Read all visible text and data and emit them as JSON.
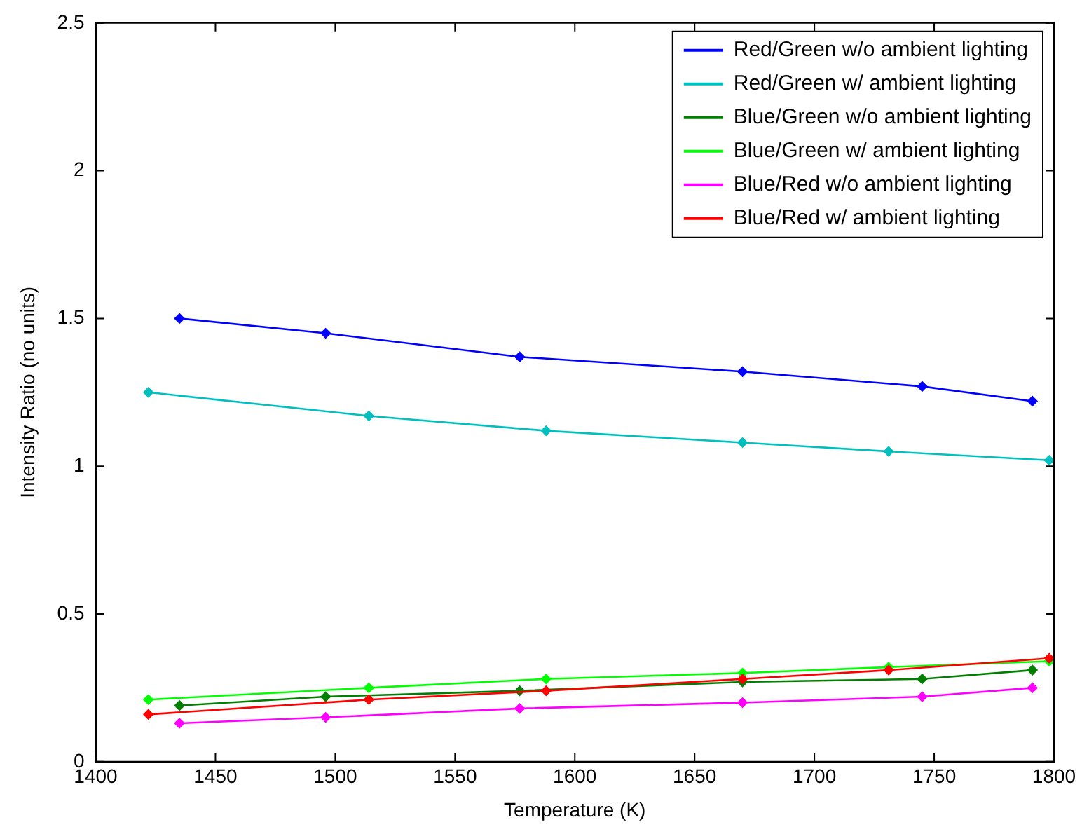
{
  "chart_data": {
    "type": "line",
    "xlabel": "Temperature (K)",
    "ylabel": "Intensity Ratio (no units)",
    "xlim": [
      1400,
      1800
    ],
    "xticks": [
      1400,
      1450,
      1500,
      1550,
      1600,
      1650,
      1700,
      1750,
      1800
    ],
    "ylim": [
      0,
      2.5
    ],
    "yticks": [
      0,
      0.5,
      1,
      1.5,
      2,
      2.5
    ],
    "grid": false,
    "legend": "top right",
    "marker": "diamond",
    "line_style": "solid",
    "series": [
      {
        "name": "Red/Green w/o ambient lighting",
        "color": "#0000ff",
        "x": [
          1435,
          1496,
          1577,
          1670,
          1745,
          1791
        ],
        "values": [
          1.5,
          1.45,
          1.37,
          1.32,
          1.27,
          1.22
        ]
      },
      {
        "name": "Red/Green w/ ambient lighting",
        "color": "#00bfbf",
        "x": [
          1422,
          1514,
          1588,
          1670,
          1731,
          1798
        ],
        "values": [
          1.25,
          1.17,
          1.12,
          1.08,
          1.05,
          1.02
        ]
      },
      {
        "name": "Blue/Green w/o ambient lighting",
        "color": "#007f00",
        "x": [
          1435,
          1496,
          1577,
          1670,
          1745,
          1791
        ],
        "values": [
          0.19,
          0.22,
          0.24,
          0.27,
          0.28,
          0.31
        ]
      },
      {
        "name": "Blue/Green w/ ambient lighting",
        "color": "#00ff00",
        "x": [
          1422,
          1514,
          1588,
          1670,
          1731,
          1798
        ],
        "values": [
          0.21,
          0.25,
          0.28,
          0.3,
          0.32,
          0.34
        ]
      },
      {
        "name": "Blue/Red w/o ambient lighting",
        "color": "#ff00ff",
        "x": [
          1435,
          1496,
          1577,
          1670,
          1745,
          1791
        ],
        "values": [
          0.13,
          0.15,
          0.18,
          0.2,
          0.22,
          0.25
        ]
      },
      {
        "name": "Blue/Red w/ ambient lighting",
        "color": "#ff0000",
        "x": [
          1422,
          1514,
          1588,
          1670,
          1731,
          1798
        ],
        "values": [
          0.16,
          0.21,
          0.24,
          0.28,
          0.31,
          0.35
        ]
      }
    ]
  }
}
